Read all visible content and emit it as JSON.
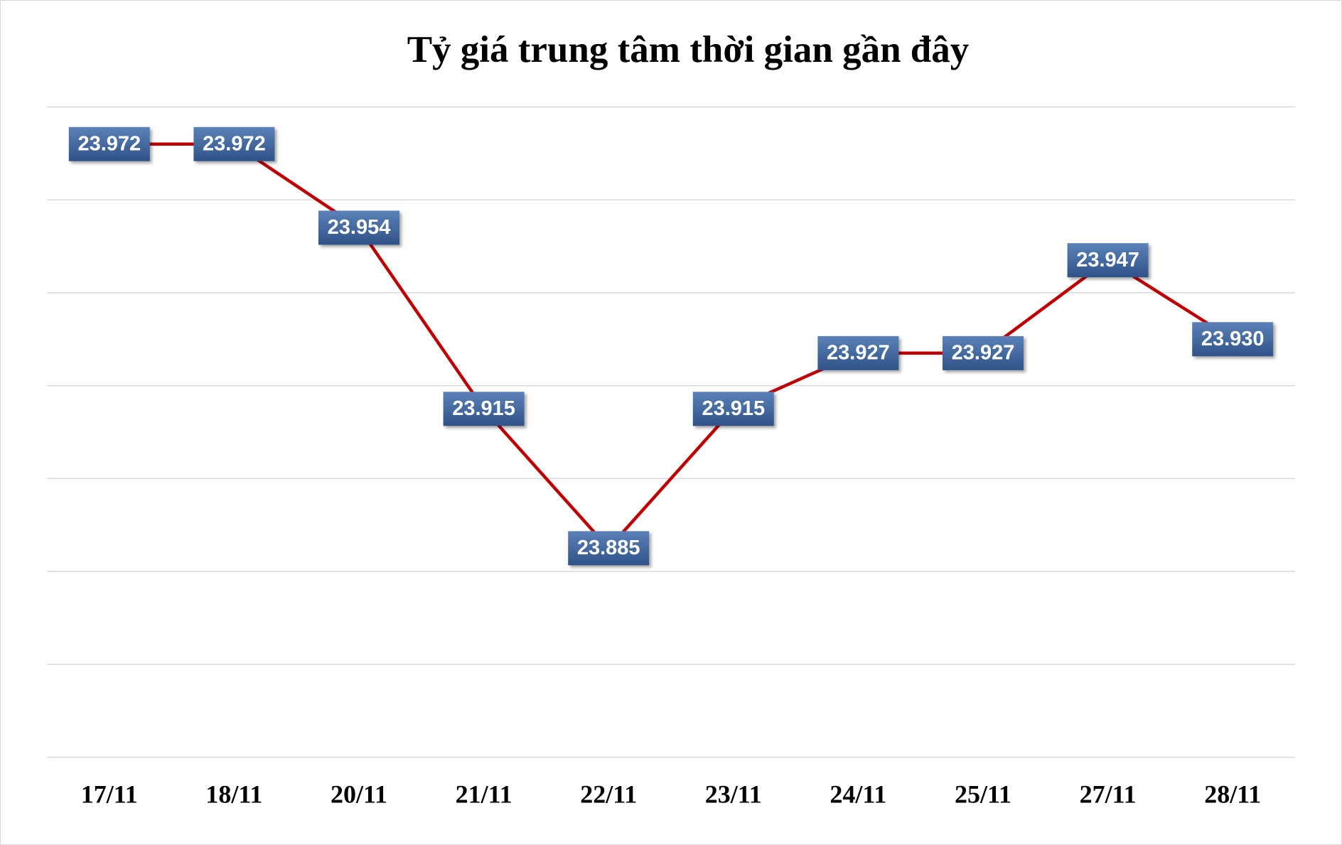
{
  "chart_data": {
    "type": "line",
    "title": "Tỷ giá trung tâm thời gian gần đây",
    "categories": [
      "17/11",
      "18/11",
      "20/11",
      "21/11",
      "22/11",
      "23/11",
      "24/11",
      "25/11",
      "27/11",
      "28/11"
    ],
    "series": [
      {
        "color": "#c00000",
        "values": [
          23972,
          23972,
          23954,
          23915,
          23885,
          23915,
          23927,
          23927,
          23947,
          23930
        ],
        "value_labels": [
          "23.972",
          "23.972",
          "23.954",
          "23.915",
          "23.885",
          "23.915",
          "23.927",
          "23.927",
          "23.947",
          "23.930"
        ]
      }
    ],
    "ylim": [
      23840,
      23980
    ],
    "yticks": [
      23840,
      23860,
      23880,
      23900,
      23920,
      23940,
      23960,
      23980
    ],
    "grid": true
  }
}
